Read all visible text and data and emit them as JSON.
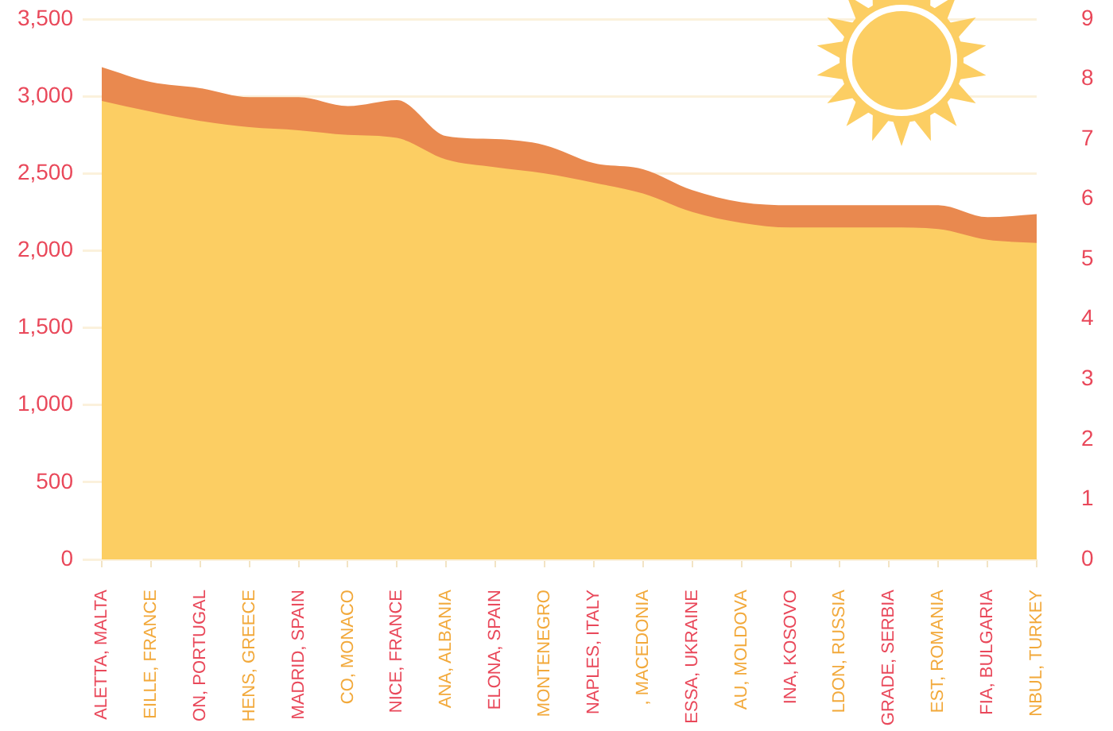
{
  "chart_data": {
    "type": "area",
    "categories": [
      "ALETTA, MALTA",
      "EILLE, FRANCE",
      "ON, PORTUGAL",
      "HENS, GREECE",
      "MADRID, SPAIN",
      "CO, MONACO",
      "NICE, FRANCE",
      "ANA, ALBANIA",
      "ELONA, SPAIN",
      "MONTENEGRO",
      "NAPLES, ITALY",
      ", MACEDONIA",
      "ESSA, UKRAINE",
      "AU, MOLDOVA",
      "INA, KOSOVO",
      "LDON, RUSSIA",
      "GRADE, SERBIA",
      "EST, ROMANIA",
      "FIA, BULGARIA",
      "NBUL, TURKEY"
    ],
    "series": [
      {
        "color": "#fcce63",
        "values": [
          2970,
          2900,
          2840,
          2800,
          2780,
          2750,
          2730,
          2590,
          2540,
          2500,
          2440,
          2370,
          2250,
          2180,
          2150,
          2150,
          2150,
          2140,
          2070,
          2050
        ]
      },
      {
        "color": "#e9894f",
        "axis": "y2",
        "values": [
          8.2,
          7.95,
          7.85,
          7.7,
          7.7,
          7.55,
          7.65,
          7.05,
          7.0,
          6.9,
          6.6,
          6.5,
          6.15,
          5.95,
          5.9,
          5.9,
          5.9,
          5.9,
          5.7,
          5.75
        ]
      }
    ],
    "ylim": [
      0,
      3500
    ],
    "yticks": [
      0,
      500,
      {
        "value": 1000,
        "label": "1,000"
      },
      {
        "value": 1500,
        "label": "1,500"
      },
      {
        "value": 2000,
        "label": "2,000"
      },
      {
        "value": 2500,
        "label": "2,500"
      },
      {
        "value": 3000,
        "label": "3,000"
      },
      {
        "value": 3500,
        "label": "3,500"
      }
    ],
    "y2lim": [
      0,
      9
    ],
    "y2ticks": [
      0,
      1,
      2,
      3,
      4,
      5,
      6,
      7,
      8,
      9
    ],
    "grid": "y",
    "legend": false
  }
}
